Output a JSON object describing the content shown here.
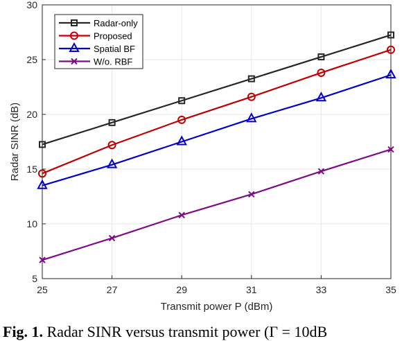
{
  "chart_data": {
    "type": "line",
    "xlabel": "Transmit power  P (dBm)",
    "ylabel": "Radar SINR (dB)",
    "xlim": [
      25,
      35
    ],
    "ylim": [
      5,
      30
    ],
    "xticks": [
      25,
      27,
      29,
      31,
      33,
      35
    ],
    "yticks": [
      5,
      10,
      15,
      20,
      25,
      30
    ],
    "grid": true,
    "legend_placement": "top-left",
    "x": [
      25,
      27,
      29,
      31,
      33,
      35
    ],
    "series": [
      {
        "name": "Radar-only",
        "color": "#262626",
        "marker": "square",
        "values": [
          17.25,
          19.25,
          21.25,
          23.25,
          25.25,
          27.25
        ]
      },
      {
        "name": "Proposed",
        "color": "#c00000",
        "marker": "circle",
        "values": [
          14.6,
          17.2,
          19.5,
          21.6,
          23.8,
          25.9
        ]
      },
      {
        "name": "Spatial BF",
        "color": "#0000c8",
        "marker": "triangle",
        "values": [
          13.5,
          15.4,
          17.5,
          19.6,
          21.5,
          23.6
        ]
      },
      {
        "name": "W/o. RBF",
        "color": "#7e0b86",
        "marker": "x",
        "values": [
          6.7,
          8.7,
          10.8,
          12.7,
          14.8,
          16.8
        ]
      }
    ]
  },
  "caption": {
    "label": "Fig. 1.",
    "text": "Radar SINR versus transmit power (Γ = 10dB"
  }
}
